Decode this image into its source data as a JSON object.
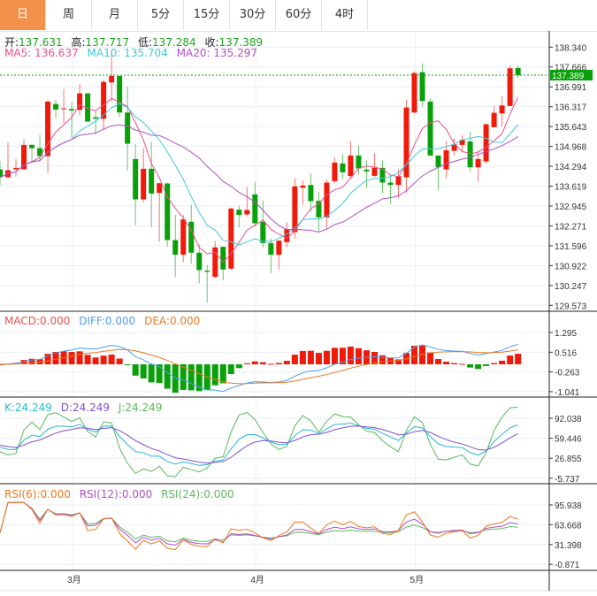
{
  "tabs": [
    {
      "label": "日",
      "active": true
    },
    {
      "label": "周"
    },
    {
      "label": "月"
    },
    {
      "label": "5分"
    },
    {
      "label": "15分"
    },
    {
      "label": "30分"
    },
    {
      "label": "60分"
    },
    {
      "label": "4时"
    }
  ],
  "ohlc_info": {
    "open_label": "开:",
    "open": "137.631",
    "high_label": "高:",
    "high": "137.717",
    "low_label": "低:",
    "low": "137.284",
    "close_label": "收:",
    "close": "137.389"
  },
  "ma_info": {
    "ma5": "MA5: 136.637",
    "ma10": "MA10: 135.704",
    "ma20": "MA20: 135.297"
  },
  "macd_info": {
    "macd": "MACD:0.000",
    "diff": "DIFF:0.000",
    "dea": "DEA:0.000"
  },
  "kdj_info": {
    "k": "K:24.249",
    "d": "D:24.249",
    "j": "J:24.249"
  },
  "rsi_info": {
    "rsi6": "RSI(6):0.000",
    "rsi12": "RSI(12):0.000",
    "rsi24": "RSI(24):0.000"
  },
  "colors": {
    "up": "#f01a0a",
    "down": "#0aa00a",
    "ma5": "#f0508c",
    "ma10": "#3cc8dc",
    "ma20": "#b050c8",
    "diff": "#4a9ff0",
    "dea": "#f07820",
    "accent": "#f3904a",
    "last_price_bg": "#0aa00a"
  },
  "chart_data": {
    "type": "candlestick",
    "price_axis_ticks": [
      "138.340",
      "137.666",
      "136.991",
      "136.317",
      "135.643",
      "134.968",
      "134.294",
      "133.619",
      "132.945",
      "132.271",
      "131.596",
      "130.922",
      "130.247",
      "129.573"
    ],
    "price_range": [
      129.573,
      138.34
    ],
    "last_price": "137.389",
    "x_labels": [
      {
        "label": "3月",
        "index": 9
      },
      {
        "label": "4月",
        "index": 32
      },
      {
        "label": "5月",
        "index": 52
      }
    ],
    "candles": [
      [
        134.19,
        134.46,
        133.64,
        133.92
      ],
      [
        133.92,
        135.12,
        133.92,
        134.16
      ],
      [
        134.19,
        134.54,
        133.94,
        134.24
      ],
      [
        134.19,
        135.22,
        134.19,
        135.02
      ],
      [
        135.02,
        135.06,
        134.39,
        134.91
      ],
      [
        134.91,
        135.37,
        134.49,
        134.64
      ],
      [
        134.64,
        136.54,
        134.06,
        136.49
      ],
      [
        136.41,
        136.56,
        135.92,
        136.22
      ],
      [
        136.24,
        136.92,
        135.74,
        136.26
      ],
      [
        136.24,
        136.49,
        135.26,
        136.19
      ],
      [
        136.21,
        137.09,
        136.02,
        136.77
      ],
      [
        136.77,
        136.79,
        135.81,
        135.81
      ],
      [
        135.96,
        136.19,
        135.39,
        135.91
      ],
      [
        135.91,
        137.22,
        135.54,
        137.16
      ],
      [
        137.14,
        138.2,
        136.49,
        137.36
      ],
      [
        137.36,
        137.36,
        135.96,
        136.12
      ],
      [
        136.12,
        136.99,
        134.14,
        135.06
      ],
      [
        134.54,
        135.04,
        132.29,
        133.17
      ],
      [
        133.17,
        134.91,
        133.06,
        134.21
      ],
      [
        134.21,
        135.12,
        132.22,
        133.37
      ],
      [
        133.39,
        133.72,
        131.74,
        133.72
      ],
      [
        133.71,
        133.74,
        131.57,
        131.79
      ],
      [
        131.79,
        132.64,
        130.54,
        131.29
      ],
      [
        131.29,
        132.64,
        131.04,
        132.49
      ],
      [
        132.41,
        132.99,
        130.99,
        131.36
      ],
      [
        131.36,
        131.64,
        130.32,
        130.77
      ],
      [
        130.75,
        130.94,
        129.66,
        130.71
      ],
      [
        130.54,
        131.76,
        130.49,
        131.54
      ],
      [
        131.56,
        131.56,
        130.42,
        130.79
      ],
      [
        130.82,
        132.89,
        130.77,
        132.86
      ],
      [
        132.82,
        132.96,
        132.22,
        132.64
      ],
      [
        132.66,
        133.59,
        132.59,
        132.81
      ],
      [
        133.34,
        133.76,
        132.24,
        132.36
      ],
      [
        132.41,
        133.14,
        131.54,
        131.69
      ],
      [
        131.69,
        131.84,
        130.66,
        131.29
      ],
      [
        131.29,
        131.77,
        130.79,
        131.77
      ],
      [
        131.72,
        132.39,
        131.54,
        132.16
      ],
      [
        132.06,
        133.89,
        131.84,
        133.61
      ],
      [
        133.57,
        133.82,
        132.99,
        133.64
      ],
      [
        133.66,
        134.06,
        132.74,
        133.11
      ],
      [
        133.12,
        133.41,
        132.04,
        132.56
      ],
      [
        132.56,
        133.84,
        132.19,
        133.74
      ],
      [
        133.79,
        134.59,
        133.72,
        134.42
      ],
      [
        134.39,
        134.72,
        133.86,
        134.09
      ],
      [
        133.96,
        135.14,
        133.92,
        134.66
      ],
      [
        134.66,
        134.99,
        134.01,
        134.22
      ],
      [
        134.18,
        134.49,
        133.56,
        134.12
      ],
      [
        133.97,
        134.74,
        133.94,
        134.24
      ],
      [
        134.24,
        134.49,
        133.39,
        133.74
      ],
      [
        133.74,
        133.99,
        133.02,
        133.66
      ],
      [
        133.66,
        134.19,
        133.22,
        133.96
      ],
      [
        133.92,
        136.56,
        133.39,
        136.29
      ],
      [
        136.12,
        137.52,
        136.09,
        137.46
      ],
      [
        137.49,
        137.79,
        136.32,
        136.51
      ],
      [
        136.49,
        136.59,
        134.64,
        134.66
      ],
      [
        134.66,
        134.66,
        133.49,
        134.26
      ],
      [
        134.19,
        135.14,
        133.89,
        134.84
      ],
      [
        134.82,
        135.24,
        134.66,
        135.04
      ],
      [
        135.02,
        135.36,
        134.76,
        135.19
      ],
      [
        135.14,
        135.46,
        134.12,
        134.26
      ],
      [
        134.26,
        134.82,
        133.76,
        134.54
      ],
      [
        134.46,
        135.76,
        134.39,
        135.72
      ],
      [
        135.62,
        136.34,
        135.62,
        136.11
      ],
      [
        136.09,
        136.69,
        135.66,
        136.36
      ],
      [
        136.34,
        137.72,
        136.34,
        137.62
      ],
      [
        137.631,
        137.717,
        137.284,
        137.389
      ]
    ],
    "macd_axis_ticks": [
      "1.295",
      "0.516",
      "-0.263",
      "-1.041"
    ],
    "kdj_axis_ticks": [
      "92.038",
      "59.446",
      "26.855",
      "-5.737"
    ],
    "rsi_axis_ticks": [
      "95.938",
      "63.668",
      "31.398",
      "-0.871"
    ]
  }
}
